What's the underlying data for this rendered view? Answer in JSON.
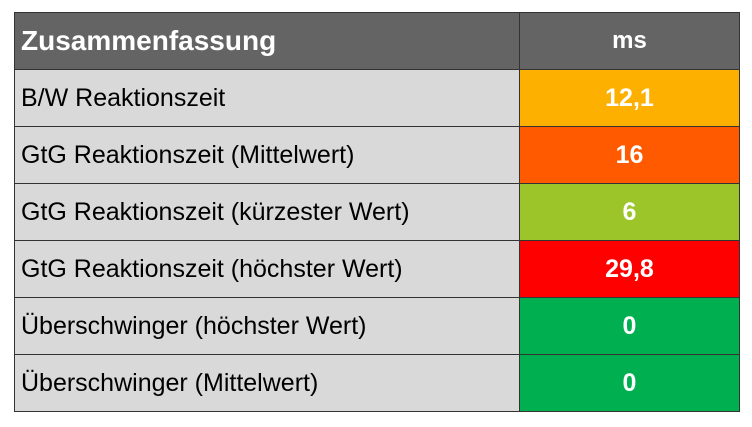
{
  "table": {
    "header": [
      "Zusammenfassung",
      "ms"
    ],
    "rows": [
      [
        "B/W Reaktionszeit",
        "12,1"
      ],
      [
        "GtG Reaktionszeit (Mittelwert)",
        "16"
      ],
      [
        "GtG Reaktionszeit (kürzester Wert)",
        "6"
      ],
      [
        "GtG Reaktionszeit (höchster Wert)",
        "29,8"
      ],
      [
        "Überschwinger (höchster Wert)",
        "0"
      ],
      [
        "Überschwinger (Mittelwert)",
        "0"
      ]
    ],
    "row_colors": [
      "#fdb000",
      "#ff5a00",
      "#9cc52a",
      "#ff0000",
      "#00b050",
      "#00b050"
    ]
  }
}
